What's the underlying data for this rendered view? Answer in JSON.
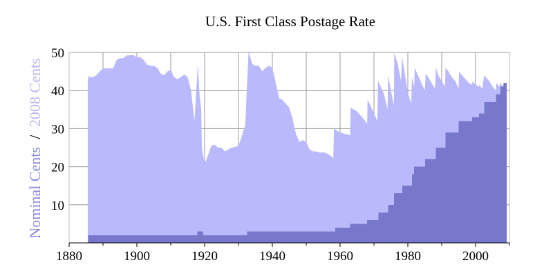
{
  "chart_data": {
    "type": "area",
    "title": "U.S. First Class Postage Rate",
    "ylabel_parts": [
      "Nominal Cents",
      "/",
      "2008 Cents"
    ],
    "xlabel": "",
    "xlim": [
      1880,
      2010
    ],
    "ylim": [
      0,
      50
    ],
    "x_ticks": [
      1880,
      1900,
      1920,
      1940,
      1960,
      1980,
      2000
    ],
    "y_ticks": [
      10,
      20,
      30,
      40,
      50
    ],
    "grid": true,
    "colors": {
      "real": "#b9b9fc",
      "nominal": "#7777cc",
      "nominal_label": "#8c8ce0",
      "real_label": "#b9b9ef"
    },
    "series": [
      {
        "name": "2008 Cents",
        "points": [
          [
            1885.5,
            42
          ],
          [
            1885.7,
            44
          ],
          [
            1886,
            43.5
          ],
          [
            1887,
            43.5
          ],
          [
            1888,
            44
          ],
          [
            1889,
            45
          ],
          [
            1890,
            45.8
          ],
          [
            1893,
            45.8
          ],
          [
            1894,
            48
          ],
          [
            1895,
            48.5
          ],
          [
            1896,
            48.5
          ],
          [
            1897,
            49.2
          ],
          [
            1899,
            49.3
          ],
          [
            1900,
            48.7
          ],
          [
            1901,
            48.8
          ],
          [
            1902,
            48
          ],
          [
            1903,
            46.8
          ],
          [
            1904,
            46.5
          ],
          [
            1905,
            46.5
          ],
          [
            1906,
            46
          ],
          [
            1907,
            44.5
          ],
          [
            1908,
            44
          ],
          [
            1909,
            45
          ],
          [
            1910,
            45.5
          ],
          [
            1911,
            43.5
          ],
          [
            1912,
            43
          ],
          [
            1913,
            43.5
          ],
          [
            1914,
            44.2
          ],
          [
            1915,
            43.5
          ],
          [
            1916,
            40
          ],
          [
            1917,
            32
          ],
          [
            1918,
            47
          ],
          [
            1918.5,
            39
          ],
          [
            1919,
            35
          ],
          [
            1919.2,
            25
          ],
          [
            1920,
            20.7
          ],
          [
            1921,
            23
          ],
          [
            1922,
            25.5
          ],
          [
            1923,
            25.8
          ],
          [
            1924,
            25
          ],
          [
            1925,
            25
          ],
          [
            1926,
            24
          ],
          [
            1927,
            24.5
          ],
          [
            1928,
            25
          ],
          [
            1929,
            25.2
          ],
          [
            1930,
            25.5
          ],
          [
            1931,
            28
          ],
          [
            1932,
            31
          ],
          [
            1932.5,
            41
          ],
          [
            1933,
            50.5
          ],
          [
            1934,
            47
          ],
          [
            1935,
            46.5
          ],
          [
            1936,
            46.5
          ],
          [
            1937,
            45
          ],
          [
            1938,
            46
          ],
          [
            1939,
            46.5
          ],
          [
            1940,
            46
          ],
          [
            1941,
            42
          ],
          [
            1942,
            38
          ],
          [
            1943,
            37.5
          ],
          [
            1944,
            36.5
          ],
          [
            1945,
            35.5
          ],
          [
            1946,
            32.5
          ],
          [
            1947,
            28.5
          ],
          [
            1948,
            26.5
          ],
          [
            1949,
            27
          ],
          [
            1950,
            26.5
          ],
          [
            1951,
            24.5
          ],
          [
            1952,
            24
          ],
          [
            1953,
            24
          ],
          [
            1954,
            23.7
          ],
          [
            1955,
            23.8
          ],
          [
            1956,
            23.5
          ],
          [
            1957,
            23
          ],
          [
            1958,
            22.3
          ],
          [
            1958.2,
            30
          ],
          [
            1959,
            29.5
          ],
          [
            1960,
            29
          ],
          [
            1961,
            28.7
          ],
          [
            1962,
            28.5
          ],
          [
            1963,
            28.3
          ],
          [
            1963.1,
            35.5
          ],
          [
            1964,
            35
          ],
          [
            1965,
            34.5
          ],
          [
            1966,
            33.5
          ],
          [
            1967,
            32.5
          ],
          [
            1968,
            31.3
          ],
          [
            1968.1,
            37.5
          ],
          [
            1969,
            36
          ],
          [
            1970,
            34
          ],
          [
            1971,
            32
          ],
          [
            1971.2,
            42.5
          ],
          [
            1972,
            41
          ],
          [
            1973,
            39
          ],
          [
            1974,
            35
          ],
          [
            1974.2,
            44
          ],
          [
            1975,
            40
          ],
          [
            1975.9,
            36
          ],
          [
            1976,
            50
          ],
          [
            1977,
            47
          ],
          [
            1978,
            42.5
          ],
          [
            1978.3,
            49
          ],
          [
            1979,
            45
          ],
          [
            1980,
            39.5
          ],
          [
            1981,
            36.5
          ],
          [
            1981.2,
            43.5
          ],
          [
            1981.9,
            41
          ],
          [
            1982,
            46
          ],
          [
            1983,
            44
          ],
          [
            1984,
            42
          ],
          [
            1985,
            40
          ],
          [
            1985.3,
            44.5
          ],
          [
            1986,
            43.5
          ],
          [
            1987,
            42
          ],
          [
            1988,
            40.5
          ],
          [
            1988.3,
            46
          ],
          [
            1989,
            44
          ],
          [
            1990,
            42.5
          ],
          [
            1991,
            41
          ],
          [
            1991.1,
            46
          ],
          [
            1992,
            45
          ],
          [
            1993,
            43.5
          ],
          [
            1994,
            42.5
          ],
          [
            1995,
            40.5
          ],
          [
            1995.1,
            45
          ],
          [
            1996,
            44
          ],
          [
            1997,
            43
          ],
          [
            1998,
            42
          ],
          [
            1999,
            41.5
          ],
          [
            1999.1,
            42.5
          ],
          [
            2000,
            41.5
          ],
          [
            2001,
            41
          ],
          [
            2001.1,
            41.5
          ],
          [
            2002,
            40.5
          ],
          [
            2002.5,
            44
          ],
          [
            2003,
            43.5
          ],
          [
            2004,
            42.5
          ],
          [
            2005,
            41
          ],
          [
            2006,
            40
          ],
          [
            2006.1,
            42
          ],
          [
            2007,
            41
          ],
          [
            2007.4,
            42
          ],
          [
            2008,
            41
          ],
          [
            2008.3,
            42
          ],
          [
            2009.2,
            42
          ]
        ]
      },
      {
        "name": "Nominal Cents",
        "steps": [
          [
            1885.6,
            1917.9,
            2
          ],
          [
            1917.9,
            1919.6,
            3
          ],
          [
            1919.6,
            1932.5,
            2
          ],
          [
            1932.5,
            1958.6,
            3
          ],
          [
            1958.6,
            1963.0,
            4
          ],
          [
            1963.0,
            1968.0,
            5
          ],
          [
            1968.0,
            1971.3,
            6
          ],
          [
            1971.3,
            1974.2,
            8
          ],
          [
            1974.2,
            1975.9,
            10
          ],
          [
            1975.9,
            1978.4,
            13
          ],
          [
            1978.4,
            1981.2,
            15
          ],
          [
            1981.2,
            1981.8,
            18
          ],
          [
            1981.8,
            1985.1,
            20
          ],
          [
            1985.1,
            1988.3,
            22
          ],
          [
            1988.3,
            1991.1,
            25
          ],
          [
            1991.1,
            1995.0,
            29
          ],
          [
            1995.0,
            1999.0,
            32
          ],
          [
            1999.0,
            2001.0,
            33
          ],
          [
            2001.0,
            2002.5,
            34
          ],
          [
            2002.5,
            2006.0,
            37
          ],
          [
            2006.0,
            2007.3,
            39
          ],
          [
            2007.3,
            2008.3,
            41
          ],
          [
            2008.3,
            2009.2,
            42
          ]
        ]
      }
    ]
  }
}
